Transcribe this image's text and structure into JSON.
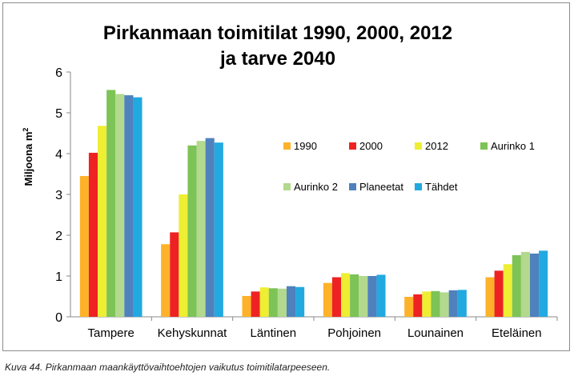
{
  "chart_data": {
    "type": "bar",
    "title_lines": [
      "Pirkanmaan toimitilat 1990, 2000, 2012",
      "ja tarve 2040"
    ],
    "xlabel": "",
    "ylabel": "Miljoona m",
    "ylabel_sup": "2",
    "ylim": [
      0,
      6
    ],
    "yticks": [
      "0",
      "1",
      "2",
      "3",
      "4",
      "5",
      "6"
    ],
    "grid": false,
    "legend_position": "right-inside",
    "categories": [
      "Tampere",
      "Kehyskunnat",
      "Läntinen",
      "Pohjoinen",
      "Lounainen",
      "Eteläinen"
    ],
    "series": [
      {
        "name": "1990",
        "color": "#FDB22A",
        "values": [
          3.45,
          1.78,
          0.51,
          0.83,
          0.49,
          0.97
        ]
      },
      {
        "name": "2000",
        "color": "#EE2222",
        "values": [
          4.02,
          2.07,
          0.62,
          0.97,
          0.55,
          1.13
        ]
      },
      {
        "name": "2012",
        "color": "#EEEE33",
        "values": [
          4.68,
          3.0,
          0.72,
          1.07,
          0.62,
          1.29
        ]
      },
      {
        "name": "Aurinko 1",
        "color": "#7DC356",
        "values": [
          5.56,
          4.2,
          0.7,
          1.04,
          0.63,
          1.51
        ]
      },
      {
        "name": "Aurinko 2",
        "color": "#B2D98E",
        "values": [
          5.46,
          4.31,
          0.69,
          1.0,
          0.6,
          1.59
        ]
      },
      {
        "name": "Planeetat",
        "color": "#4F81BD",
        "values": [
          5.43,
          4.38,
          0.75,
          1.0,
          0.65,
          1.55
        ]
      },
      {
        "name": "Tähdet",
        "color": "#22A9E0",
        "values": [
          5.38,
          4.27,
          0.73,
          1.03,
          0.66,
          1.62
        ]
      }
    ]
  },
  "caption": "Kuva 44. Pirkanmaan maankäyttövaihtoehtojen vaikutus toimitilatarpeeseen."
}
